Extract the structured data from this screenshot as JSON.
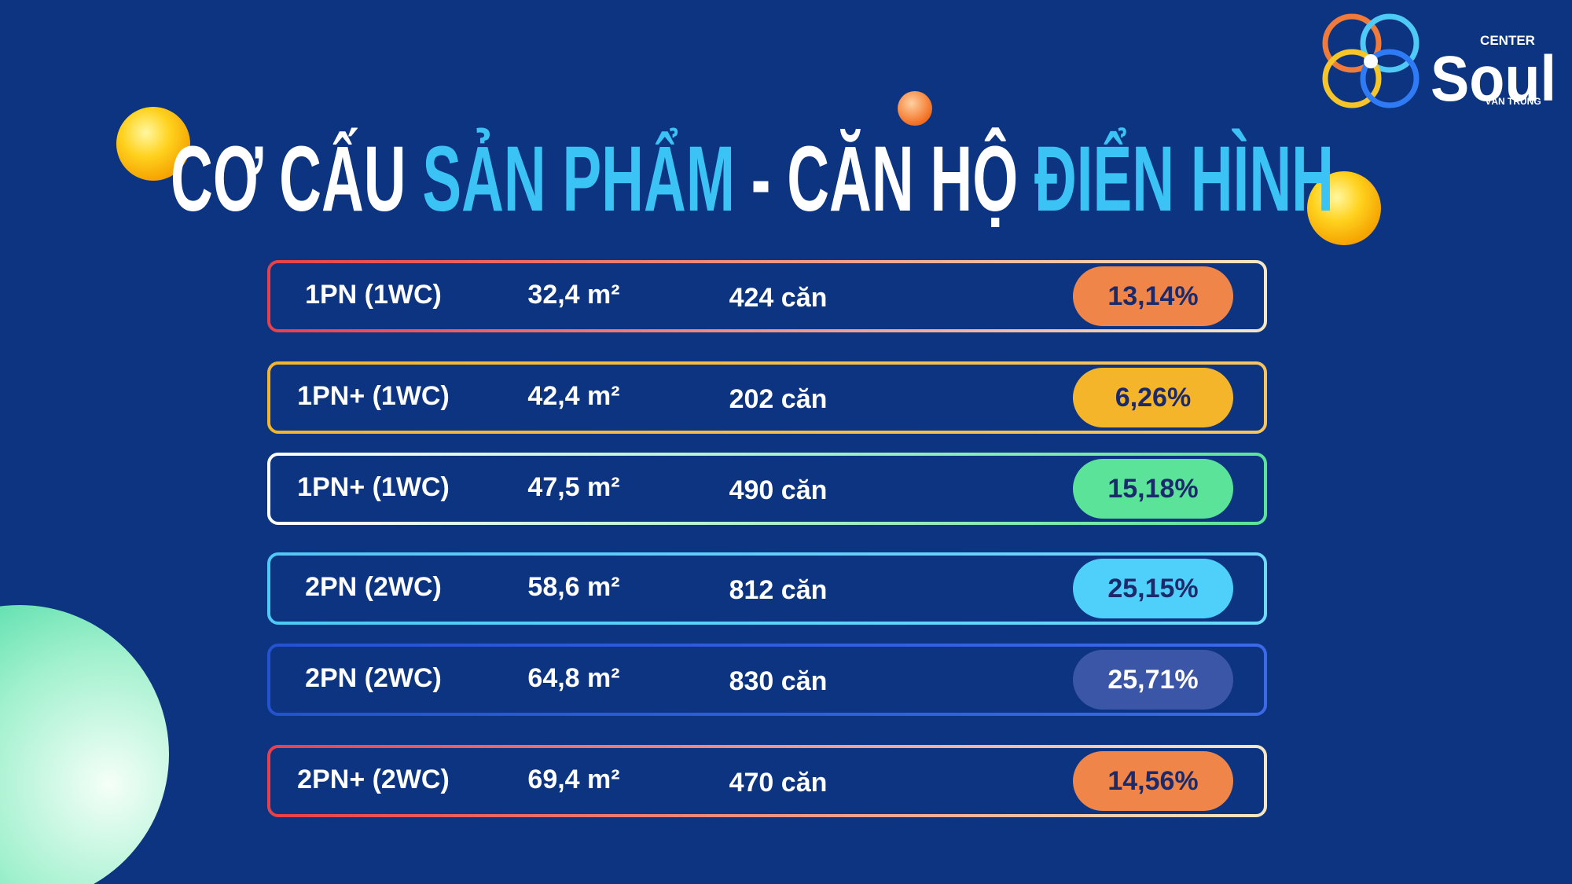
{
  "logo": {
    "top": "CENTER",
    "name": "Soul",
    "bottom": "VĂN TRUNG"
  },
  "title": [
    "CƠ CẤU",
    "SẢN PHẨM",
    "-",
    "CĂN HỘ",
    "ĐIỂN HÌNH"
  ],
  "table": {
    "rows": [
      {
        "type": "1PN (1WC)",
        "area": "32,4 m²",
        "count": "424 căn",
        "percent": "13,14%"
      },
      {
        "type": "1PN+ (1WC)",
        "area": "42,4 m²",
        "count": "202 căn",
        "percent": "6,26%"
      },
      {
        "type": "1PN+ (1WC)",
        "area": "47,5 m²",
        "count": "490 căn",
        "percent": "15,18%"
      },
      {
        "type": "2PN (2WC)",
        "area": "58,6 m²",
        "count": "812 căn",
        "percent": "25,15%"
      },
      {
        "type": "2PN (2WC)",
        "area": "64,8 m²",
        "count": "830 căn",
        "percent": "25,71%"
      },
      {
        "type": "2PN+ (2WC)",
        "area": "69,4 m²",
        "count": "470 căn",
        "percent": "14,56%"
      }
    ]
  }
}
